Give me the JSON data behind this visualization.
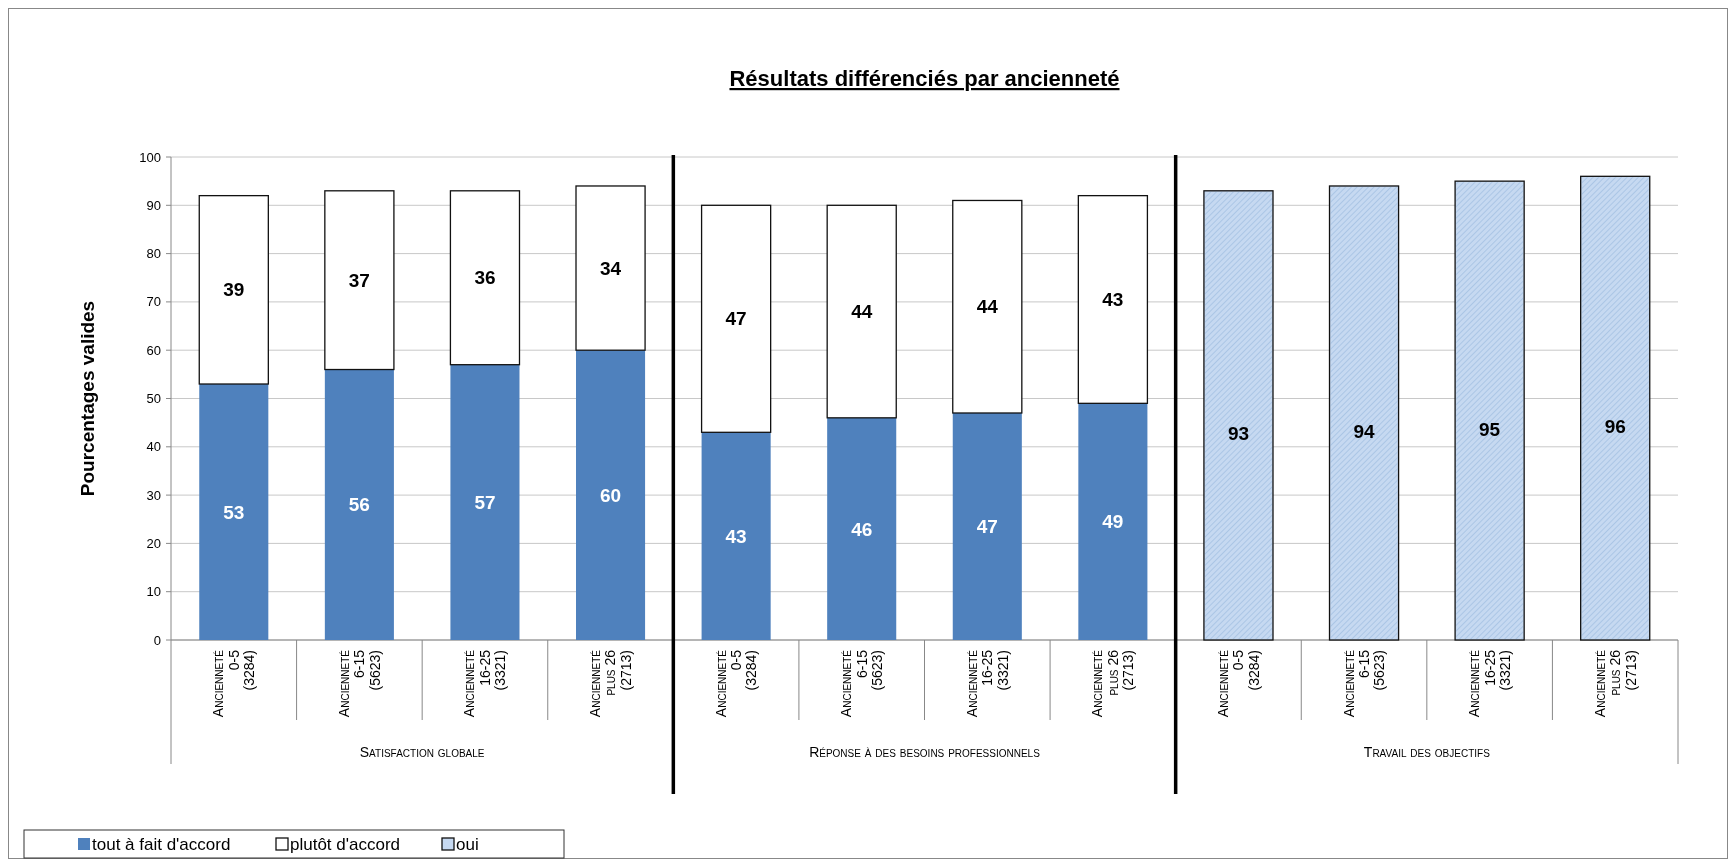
{
  "chart_data": {
    "type": "bar",
    "title": "Résultats différenciés par ancienneté",
    "ylabel": "Pourcentages  valides",
    "categories": [
      "Ancienneté\n0-5\n(3284)",
      "Ancienneté\n6-15\n(5623)",
      "Ancienneté\n16-25\n(3321)",
      "Ancienneté\nplus 26\n(2713)",
      "Ancienneté\n0-5\n(3284)",
      "Ancienneté\n6-15\n(5623)",
      "Ancienneté\n16-25\n(3321)",
      "Ancienneté\nplus 26\n(2713)",
      "Ancienneté\n0-5\n(3284)",
      "Ancienneté\n6-15\n(5623)",
      "Ancienneté\n16-25\n(3321)",
      "Ancienneté\nplus 26\n(2713)"
    ],
    "series": [
      {
        "name": "tout à fait d'accord",
        "color": "#4f81bd",
        "values": [
          53,
          56,
          57,
          60,
          43,
          46,
          47,
          49,
          null,
          null,
          null,
          null
        ]
      },
      {
        "name": "plutôt d'accord",
        "color": "#ffffff",
        "values": [
          39,
          37,
          36,
          34,
          47,
          44,
          44,
          43,
          null,
          null,
          null,
          null
        ]
      },
      {
        "name": "oui",
        "color": "#c6d9f1",
        "values": [
          null,
          null,
          null,
          null,
          null,
          null,
          null,
          null,
          93,
          94,
          95,
          96
        ]
      }
    ],
    "stacked": true,
    "data_labels": true,
    "ylim": [
      0,
      100
    ],
    "yticks": [
      0,
      10,
      20,
      30,
      40,
      50,
      60,
      70,
      80,
      90,
      100
    ],
    "grid": "y",
    "legend": "bottom",
    "annotations": [
      "Satisfaction globale",
      "Réponse à des besoins professionnels",
      "Travail des objectifs"
    ]
  }
}
